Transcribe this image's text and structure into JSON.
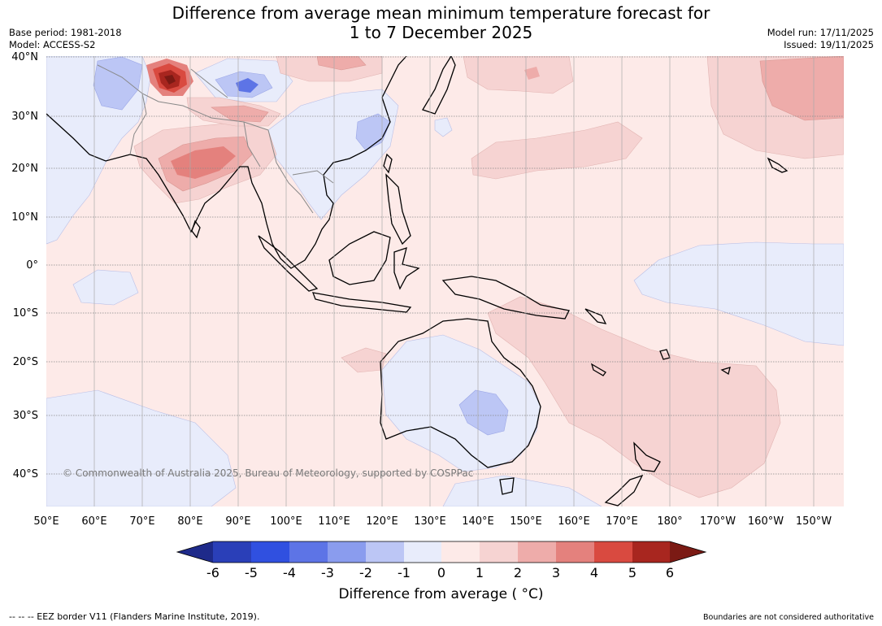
{
  "title_line1": "Difference from average mean minimum temperature forecast for",
  "title_line2": "1 to 7 December 2025",
  "base_period": "Base period: 1981-2018",
  "model": "Model: ACCESS-S2",
  "model_run": "Model run: 17/11/2025",
  "issued": "Issued: 19/11/2025",
  "copyright": "© Commonwealth of Australia 2025, Bureau of Meteorology, supported by COSPPac",
  "eez_note": "--  --  -- EEZ border V11 (Flanders Marine Institute, 2019).",
  "boundaries_note": "Boundaries are not considered authoritative",
  "lat_labels": [
    "40°N",
    "30°N",
    "20°N",
    "10°N",
    "0°",
    "10°S",
    "20°S",
    "30°S",
    "40°S"
  ],
  "lon_labels": [
    "50°E",
    "60°E",
    "70°E",
    "80°E",
    "90°E",
    "100°E",
    "110°E",
    "120°E",
    "130°E",
    "140°E",
    "150°E",
    "160°E",
    "170°E",
    "180°",
    "170°W",
    "160°W",
    "150°W"
  ],
  "colorbar": {
    "label": "Difference from average ( °C)",
    "ticks": [
      "-6",
      "-5",
      "-4",
      "-3",
      "-2",
      "-1",
      "0",
      "1",
      "2",
      "3",
      "4",
      "5",
      "6"
    ],
    "colors": [
      "#1e2a8a",
      "#2a3fb8",
      "#3050e0",
      "#5d74e6",
      "#8a9cee",
      "#bcc6f5",
      "#e8ecfb",
      "#fdeae8",
      "#f6d3d2",
      "#eeacaa",
      "#e4817d",
      "#d94a40",
      "#a8261f",
      "#7b1a14"
    ]
  }
}
